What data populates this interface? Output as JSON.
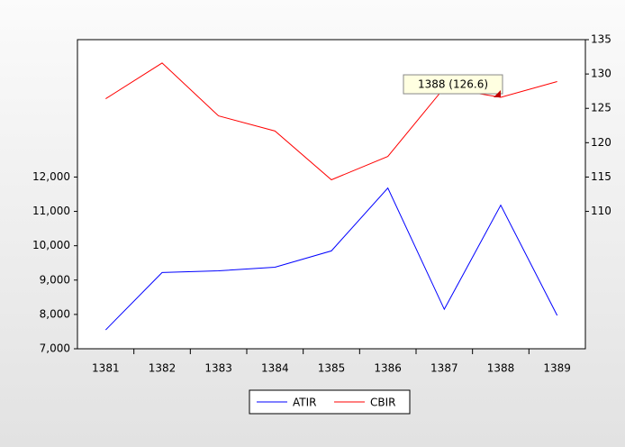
{
  "chart_data": {
    "type": "line",
    "categories": [
      "1381",
      "1382",
      "1383",
      "1384",
      "1385",
      "1386",
      "1387",
      "1388",
      "1389"
    ],
    "series": [
      {
        "name": "ATIR",
        "color": "#0000ff",
        "values": [
          7550,
          9220,
          9270,
          9375,
          9850,
          11680,
          8150,
          11180,
          7970
        ]
      },
      {
        "name": "CBIR",
        "color": "#ff0000",
        "axis": "y2",
        "values": [
          126.4,
          131.6,
          123.9,
          121.7,
          114.6,
          118.0,
          128.0,
          126.6,
          128.9
        ]
      }
    ],
    "ylim": [
      7000,
      16000
    ],
    "yticks": [
      {
        "value": 7000,
        "label": "7,000"
      },
      {
        "value": 8000,
        "label": "8,000"
      },
      {
        "value": 9000,
        "label": "9,000"
      },
      {
        "value": 10000,
        "label": "10,000"
      },
      {
        "value": 11000,
        "label": "11,000"
      },
      {
        "value": 12000,
        "label": "12,000"
      }
    ],
    "y2lim": [
      90,
      135
    ],
    "y2ticks": [
      110,
      115,
      120,
      125,
      130,
      135
    ],
    "annotation": "1388 (126.6)",
    "legend": "bottom"
  }
}
